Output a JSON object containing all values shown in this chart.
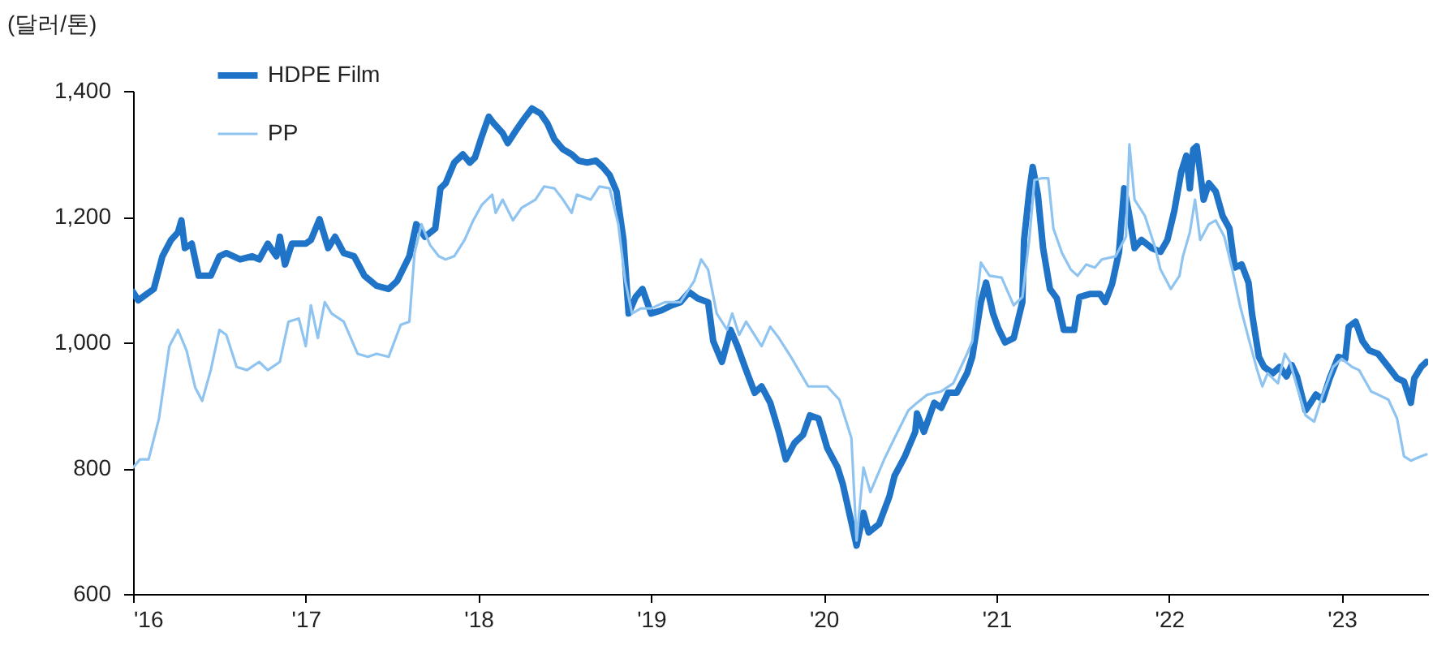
{
  "chart_data": {
    "type": "line",
    "ylabel": "(달러/톤)",
    "legend": "top left",
    "grid": false,
    "xlim": [
      2016,
      2023.5
    ],
    "ylim": [
      600,
      1400
    ],
    "xticks": [
      {
        "value": 2016,
        "label": "'16"
      },
      {
        "value": 2017,
        "label": "'17"
      },
      {
        "value": 2018,
        "label": "'18"
      },
      {
        "value": 2019,
        "label": "'19"
      },
      {
        "value": 2020,
        "label": "'20"
      },
      {
        "value": 2021,
        "label": "'21"
      },
      {
        "value": 2022,
        "label": "'22"
      },
      {
        "value": 2023,
        "label": "'23"
      }
    ],
    "yticks": [
      600,
      800,
      {
        "value": 1000,
        "label": "1,000"
      },
      {
        "value": 1200,
        "label": "1,200"
      },
      {
        "value": 1400,
        "label": "1,400"
      }
    ],
    "series": [
      {
        "name": "HDPE Film",
        "color": "#1f74c8",
        "x": [
          2016.0,
          2016.03,
          2016.08,
          2016.12,
          2016.17,
          2016.22,
          2016.26,
          2016.28,
          2016.3,
          2016.34,
          2016.38,
          2016.45,
          2016.5,
          2016.54,
          2016.62,
          2016.69,
          2016.73,
          2016.78,
          2016.83,
          2016.85,
          2016.88,
          2016.92,
          2017.0,
          2017.03,
          2017.08,
          2017.13,
          2017.17,
          2017.22,
          2017.28,
          2017.34,
          2017.41,
          2017.48,
          2017.53,
          2017.6,
          2017.64,
          2017.69,
          2017.75,
          2017.78,
          2017.81,
          2017.86,
          2017.91,
          2017.95,
          2017.98,
          2018.02,
          2018.06,
          2018.09,
          2018.14,
          2018.17,
          2018.22,
          2018.26,
          2018.31,
          2018.36,
          2018.4,
          2018.44,
          2018.49,
          2018.54,
          2018.58,
          2018.63,
          2018.68,
          2018.72,
          2018.76,
          2018.8,
          2018.84,
          2018.87,
          2018.91,
          2018.95,
          2019.0,
          2019.06,
          2019.12,
          2019.17,
          2019.22,
          2019.27,
          2019.33,
          2019.36,
          2019.41,
          2019.46,
          2019.5,
          2019.55,
          2019.6,
          2019.64,
          2019.69,
          2019.74,
          2019.78,
          2019.83,
          2019.88,
          2019.92,
          2019.97,
          2020.02,
          2020.08,
          2020.11,
          2020.19,
          2020.23,
          2020.26,
          2020.32,
          2020.38,
          2020.41,
          2020.47,
          2020.53,
          2020.54,
          2020.58,
          2020.64,
          2020.68,
          2020.72,
          2020.77,
          2020.83,
          2020.86,
          2020.91,
          2020.94,
          2020.98,
          2021.01,
          2021.05,
          2021.1,
          2021.15,
          2021.16,
          2021.19,
          2021.21,
          2021.24,
          2021.27,
          2021.31,
          2021.35,
          2021.39,
          2021.45,
          2021.48,
          2021.54,
          2021.6,
          2021.63,
          2021.67,
          2021.71,
          2021.74,
          2021.77,
          2021.8,
          2021.84,
          2021.9,
          2021.95,
          2021.99,
          2022.03,
          2022.07,
          2022.1,
          2022.12,
          2022.14,
          2022.16,
          2022.2,
          2022.23,
          2022.27,
          2022.31,
          2022.35,
          2022.38,
          2022.42,
          2022.46,
          2022.48,
          2022.52,
          2022.55,
          2022.6,
          2022.64,
          2022.68,
          2022.71,
          2022.74,
          2022.79,
          2022.82,
          2022.85,
          2022.89,
          2022.93,
          2022.98,
          2023.02,
          2023.04,
          2023.08,
          2023.12,
          2023.16,
          2023.21,
          2023.27,
          2023.32,
          2023.36,
          2023.4,
          2023.42,
          2023.46,
          2023.49
        ],
        "values": [
          1080,
          1067,
          1077,
          1085,
          1137,
          1163,
          1175,
          1194,
          1150,
          1157,
          1106,
          1106,
          1137,
          1142,
          1132,
          1137,
          1132,
          1157,
          1137,
          1168,
          1124,
          1157,
          1157,
          1163,
          1196,
          1150,
          1168,
          1142,
          1137,
          1106,
          1090,
          1085,
          1098,
          1137,
          1188,
          1168,
          1181,
          1245,
          1253,
          1286,
          1299,
          1286,
          1294,
          1328,
          1359,
          1348,
          1333,
          1317,
          1338,
          1354,
          1372,
          1364,
          1348,
          1323,
          1307,
          1299,
          1289,
          1286,
          1289,
          1279,
          1266,
          1240,
          1163,
          1046,
          1072,
          1085,
          1046,
          1051,
          1059,
          1064,
          1080,
          1070,
          1064,
          1002,
          969,
          1020,
          994,
          956,
          920,
          930,
          904,
          858,
          814,
          840,
          853,
          884,
          879,
          832,
          801,
          775,
          677,
          729,
          698,
          711,
          755,
          788,
          819,
          858,
          887,
          858,
          904,
          896,
          920,
          920,
          951,
          977,
          1064,
          1095,
          1046,
          1023,
          1000,
          1007,
          1064,
          1163,
          1240,
          1279,
          1235,
          1150,
          1085,
          1070,
          1020,
          1020,
          1072,
          1077,
          1077,
          1064,
          1093,
          1144,
          1245,
          1201,
          1150,
          1163,
          1150,
          1144,
          1163,
          1209,
          1271,
          1297,
          1245,
          1307,
          1312,
          1227,
          1253,
          1240,
          1201,
          1181,
          1119,
          1124,
          1095,
          1046,
          977,
          961,
          951,
          961,
          946,
          964,
          946,
          892,
          904,
          917,
          909,
          943,
          977,
          974,
          1025,
          1033,
          1002,
          987,
          982,
          961,
          943,
          938,
          904,
          943,
          961,
          969
        ]
      },
      {
        "name": "PP",
        "color": "#90c4f0",
        "x": [
          2016.0,
          2016.04,
          2016.09,
          2016.15,
          2016.21,
          2016.26,
          2016.31,
          2016.36,
          2016.4,
          2016.45,
          2016.5,
          2016.54,
          2016.6,
          2016.66,
          2016.73,
          2016.78,
          2016.85,
          2016.9,
          2016.96,
          2017.0,
          2017.03,
          2017.07,
          2017.11,
          2017.15,
          2017.22,
          2017.3,
          2017.36,
          2017.41,
          2017.48,
          2017.55,
          2017.6,
          2017.63,
          2017.67,
          2017.72,
          2017.77,
          2017.81,
          2017.86,
          2017.92,
          2017.97,
          2018.02,
          2018.08,
          2018.1,
          2018.14,
          2018.2,
          2018.25,
          2018.33,
          2018.38,
          2018.44,
          2018.49,
          2018.54,
          2018.57,
          2018.65,
          2018.7,
          2018.76,
          2018.81,
          2018.85,
          2018.89,
          2018.94,
          2019.0,
          2019.08,
          2019.17,
          2019.25,
          2019.29,
          2019.33,
          2019.38,
          2019.44,
          2019.47,
          2019.51,
          2019.55,
          2019.64,
          2019.69,
          2019.74,
          2019.81,
          2019.91,
          2019.97,
          2020.02,
          2020.09,
          2020.16,
          2020.19,
          2020.23,
          2020.27,
          2020.35,
          2020.41,
          2020.49,
          2020.54,
          2020.6,
          2020.68,
          2020.75,
          2020.83,
          2020.86,
          2020.91,
          2020.96,
          2021.03,
          2021.1,
          2021.15,
          2021.19,
          2021.22,
          2021.26,
          2021.3,
          2021.33,
          2021.38,
          2021.43,
          2021.47,
          2021.52,
          2021.57,
          2021.61,
          2021.69,
          2021.75,
          2021.77,
          2021.8,
          2021.86,
          2021.92,
          2021.95,
          2022.01,
          2022.06,
          2022.08,
          2022.12,
          2022.15,
          2022.18,
          2022.23,
          2022.27,
          2022.32,
          2022.37,
          2022.41,
          2022.46,
          2022.51,
          2022.54,
          2022.57,
          2022.63,
          2022.67,
          2022.7,
          2022.74,
          2022.79,
          2022.84,
          2022.89,
          2022.95,
          2023.0,
          2023.06,
          2023.1,
          2023.17,
          2023.21,
          2023.27,
          2023.32,
          2023.36,
          2023.4,
          2023.46,
          2023.49
        ],
        "values": [
          801,
          814,
          814,
          879,
          994,
          1020,
          987,
          928,
          907,
          956,
          1020,
          1012,
          961,
          956,
          969,
          956,
          969,
          1033,
          1038,
          994,
          1059,
          1007,
          1064,
          1046,
          1033,
          982,
          977,
          982,
          977,
          1028,
          1033,
          1142,
          1188,
          1155,
          1137,
          1132,
          1137,
          1163,
          1194,
          1219,
          1235,
          1206,
          1227,
          1194,
          1214,
          1227,
          1248,
          1245,
          1227,
          1206,
          1235,
          1227,
          1248,
          1245,
          1188,
          1098,
          1046,
          1054,
          1054,
          1064,
          1064,
          1098,
          1132,
          1116,
          1046,
          1020,
          1046,
          1012,
          1033,
          994,
          1025,
          1007,
          977,
          930,
          930,
          930,
          909,
          848,
          685,
          801,
          762,
          814,
          848,
          892,
          904,
          917,
          922,
          935,
          982,
          1002,
          1127,
          1106,
          1103,
          1059,
          1072,
          1163,
          1258,
          1261,
          1261,
          1181,
          1142,
          1116,
          1106,
          1124,
          1119,
          1132,
          1137,
          1168,
          1315,
          1227,
          1201,
          1150,
          1116,
          1085,
          1106,
          1137,
          1175,
          1227,
          1163,
          1188,
          1194,
          1168,
          1111,
          1059,
          1007,
          956,
          930,
          951,
          935,
          982,
          969,
          930,
          884,
          874,
          917,
          961,
          974,
          961,
          956,
          922,
          917,
          909,
          879,
          819,
          812,
          819,
          822
        ]
      }
    ]
  }
}
